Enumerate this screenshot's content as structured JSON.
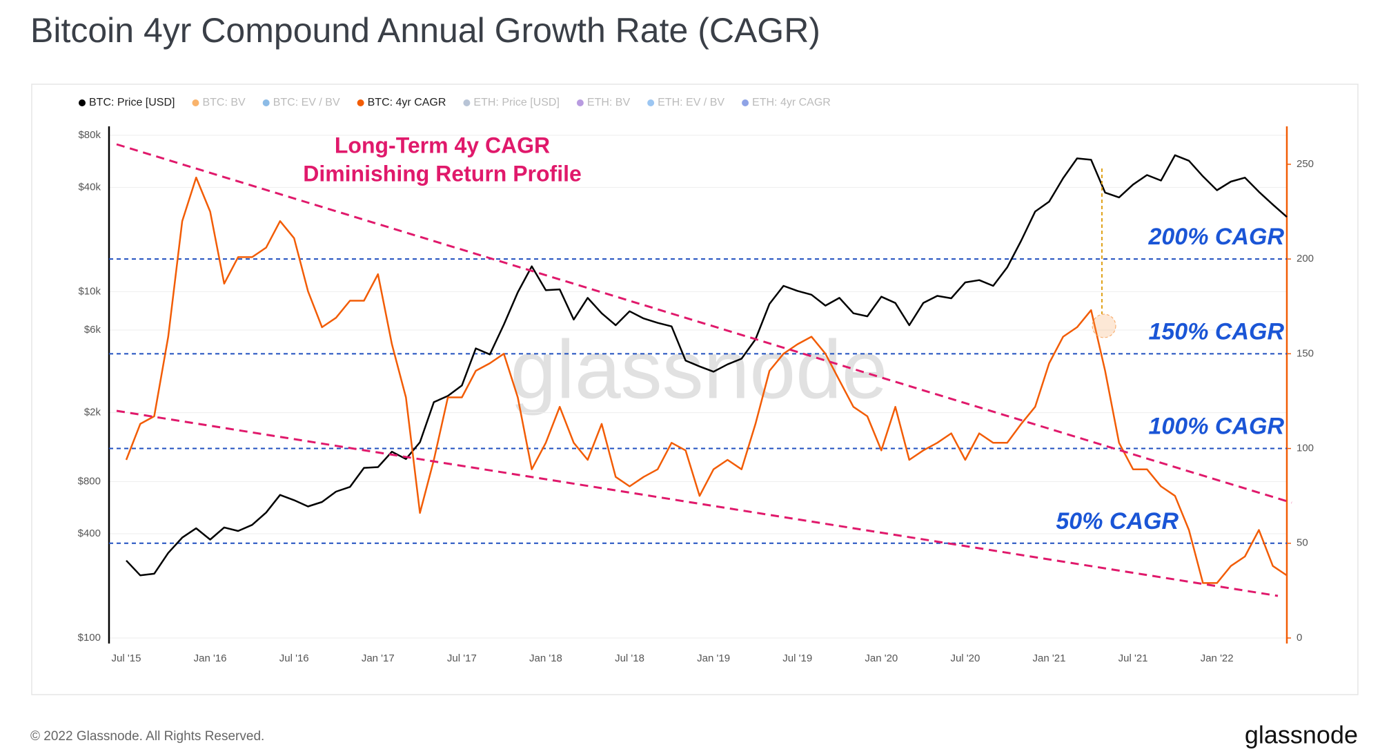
{
  "chart_data": {
    "type": "line",
    "title": "Bitcoin 4yr Compound Annual Growth Rate (CAGR)",
    "categories": [
      "Jul '15",
      null,
      null,
      null,
      null,
      null,
      "Jan '16",
      null,
      null,
      null,
      null,
      null,
      "Jul '16",
      null,
      null,
      null,
      null,
      null,
      "Jan '17",
      null,
      null,
      null,
      null,
      null,
      "Jul '17",
      null,
      null,
      null,
      null,
      null,
      "Jan '18",
      null,
      null,
      null,
      null,
      null,
      "Jul '18",
      null,
      null,
      null,
      null,
      null,
      "Jan '19",
      null,
      null,
      null,
      null,
      null,
      "Jul '19",
      null,
      null,
      null,
      null,
      null,
      "Jan '20",
      null,
      null,
      null,
      null,
      null,
      "Jul '20",
      null,
      null,
      null,
      null,
      null,
      "Jan '21",
      null,
      null,
      null,
      null,
      null,
      "Jul '21",
      null,
      null,
      null,
      null,
      null,
      "Jan '22",
      null,
      null,
      null,
      null,
      null
    ],
    "series": [
      {
        "name": "BTC: Price [USD]",
        "color": "#000000",
        "visible": true,
        "axis": "y",
        "values": [
          280,
          230,
          235,
          310,
          380,
          430,
          370,
          435,
          415,
          450,
          530,
          670,
          625,
          575,
          610,
          700,
          745,
          960,
          970,
          1190,
          1080,
          1350,
          2300,
          2500,
          2870,
          4700,
          4340,
          6450,
          9900,
          14000,
          10200,
          10300,
          6900,
          9200,
          7500,
          6400,
          7700,
          7000,
          6600,
          6300,
          4000,
          3700,
          3450,
          3800,
          4100,
          5300,
          8500,
          10800,
          10100,
          9600,
          8300,
          9200,
          7500,
          7200,
          9350,
          8600,
          6400,
          8600,
          9450,
          9150,
          11300,
          11650,
          10800,
          13800,
          19700,
          29000,
          33100,
          45200,
          58800,
          57700,
          37300,
          35000,
          41500,
          47100,
          43800,
          61300,
          57000,
          46300,
          38500,
          43200,
          45500,
          37700,
          31800,
          27000
        ]
      },
      {
        "name": "BTC: BV",
        "color": "#f9b36b",
        "visible": false
      },
      {
        "name": "BTC: EV / BV",
        "color": "#8cbbe6",
        "visible": false
      },
      {
        "name": "BTC: 4yr CAGR",
        "color": "#f25c05",
        "visible": true,
        "axis": "y2",
        "values": [
          94,
          113,
          117,
          159,
          220,
          243,
          225,
          187,
          201,
          201,
          206,
          220,
          211,
          183,
          164,
          169,
          178,
          178,
          192,
          155,
          127,
          66,
          94,
          127,
          127,
          141,
          145,
          150,
          127,
          89,
          103,
          122,
          103,
          94,
          113,
          85,
          80,
          85,
          89,
          103,
          99,
          75,
          89,
          94,
          89,
          113,
          141,
          150,
          155,
          159,
          150,
          136,
          122,
          117,
          99,
          122,
          94,
          99,
          103,
          108,
          94,
          108,
          103,
          103,
          113,
          122,
          145,
          159,
          164,
          173,
          141,
          103,
          89,
          89,
          80,
          75,
          57,
          29,
          29,
          38,
          43,
          57,
          38,
          33
        ]
      },
      {
        "name": "ETH: Price [USD]",
        "color": "#b8c4d6",
        "visible": false
      },
      {
        "name": "ETH: BV",
        "color": "#b89be0",
        "visible": false
      },
      {
        "name": "ETH: EV / BV",
        "color": "#9cc6f2",
        "visible": false
      },
      {
        "name": "ETH: 4yr CAGR",
        "color": "#8fa3e6",
        "visible": false
      }
    ],
    "ylim": [
      100,
      90000
    ],
    "yscale": "log",
    "yticks": [
      {
        "value": 100,
        "label": "$100"
      },
      {
        "value": 400,
        "label": "$400"
      },
      {
        "value": 800,
        "label": "$800"
      },
      {
        "value": 2000,
        "label": "$2k"
      },
      {
        "value": 6000,
        "label": "$6k"
      },
      {
        "value": 10000,
        "label": "$10k"
      },
      {
        "value": 40000,
        "label": "$40k"
      },
      {
        "value": 80000,
        "label": "$80k"
      }
    ],
    "y2lim": [
      0,
      270
    ],
    "y2ticks": [
      0,
      50,
      100,
      150,
      200,
      250
    ],
    "grid": true,
    "reference_lines": [
      {
        "value": 200,
        "label": "200% CAGR"
      },
      {
        "value": 150,
        "label": "150% CAGR"
      },
      {
        "value": 100,
        "label": "100% CAGR"
      },
      {
        "value": 50,
        "label": "50% CAGR"
      }
    ],
    "annotation": [
      "Long-Term 4y CAGR",
      "Diminishing Return Profile"
    ],
    "watermark": "glassnode",
    "copyright": "© 2022 Glassnode. All Rights Reserved.",
    "logo": "glassnode"
  }
}
